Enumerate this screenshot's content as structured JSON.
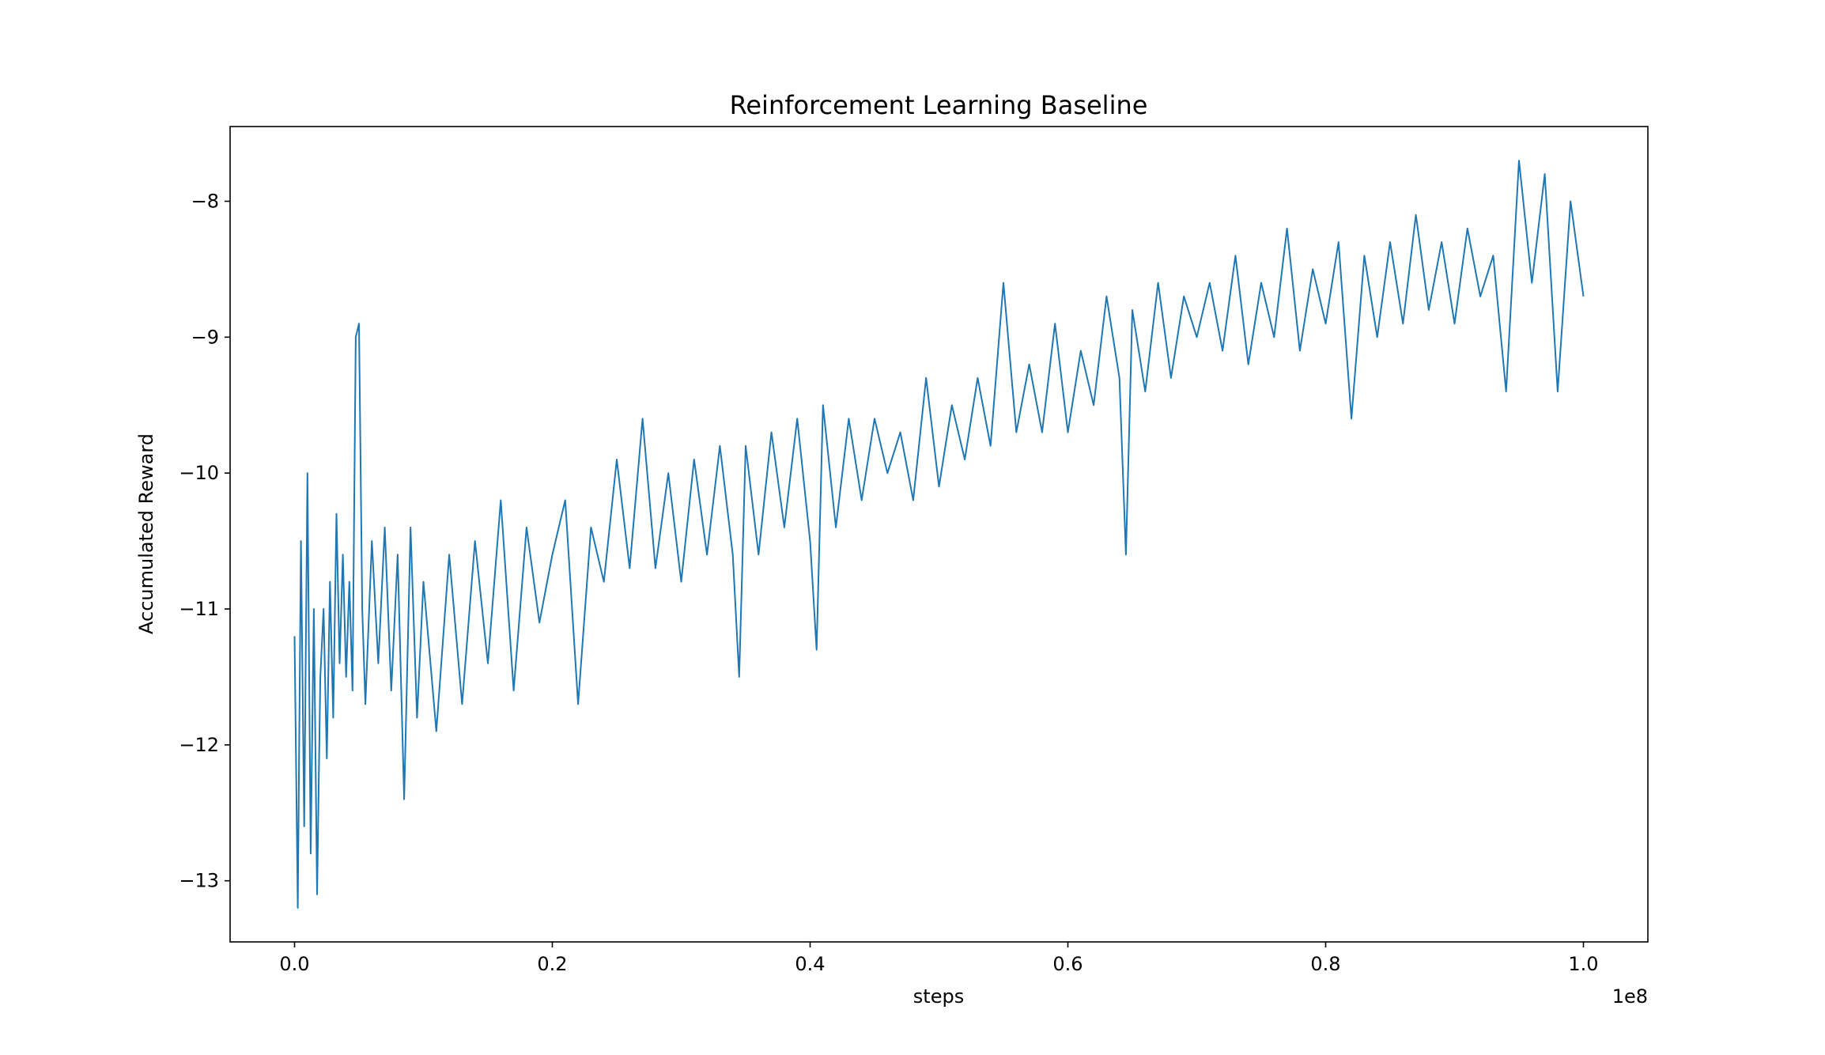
{
  "chart_data": {
    "type": "line",
    "title": "Reinforcement Learning Baseline",
    "xlabel": "steps",
    "ylabel": "Accumulated Reward",
    "x_offset_label": "1e8",
    "xlim": [
      -0.05,
      1.05
    ],
    "ylim": [
      -13.45,
      -7.45
    ],
    "xticks": [
      0.0,
      0.2,
      0.4,
      0.6,
      0.8,
      1.0
    ],
    "xtick_labels": [
      "0.0",
      "0.2",
      "0.4",
      "0.6",
      "0.8",
      "1.0"
    ],
    "yticks": [
      -13,
      -12,
      -11,
      -10,
      -9,
      -8
    ],
    "ytick_labels": [
      "−13",
      "−12",
      "−11",
      "−10",
      "−9",
      "−8"
    ],
    "grid": false,
    "legend": "none",
    "series": [
      {
        "name": "Accumulated Reward",
        "color": "#1f77b4",
        "x": [
          0.0,
          0.0025,
          0.005,
          0.0075,
          0.01,
          0.0125,
          0.015,
          0.0175,
          0.02,
          0.0225,
          0.025,
          0.0275,
          0.03,
          0.0325,
          0.035,
          0.0375,
          0.04,
          0.0425,
          0.045,
          0.0475,
          0.05,
          0.0525,
          0.055,
          0.06,
          0.065,
          0.07,
          0.075,
          0.08,
          0.085,
          0.09,
          0.095,
          0.1,
          0.11,
          0.12,
          0.13,
          0.14,
          0.15,
          0.16,
          0.17,
          0.18,
          0.19,
          0.2,
          0.21,
          0.22,
          0.23,
          0.24,
          0.25,
          0.26,
          0.27,
          0.28,
          0.29,
          0.3,
          0.31,
          0.32,
          0.33,
          0.34,
          0.345,
          0.35,
          0.36,
          0.37,
          0.38,
          0.39,
          0.4,
          0.405,
          0.41,
          0.42,
          0.43,
          0.44,
          0.45,
          0.46,
          0.47,
          0.48,
          0.49,
          0.5,
          0.51,
          0.52,
          0.53,
          0.54,
          0.55,
          0.56,
          0.57,
          0.58,
          0.59,
          0.6,
          0.61,
          0.62,
          0.63,
          0.64,
          0.645,
          0.65,
          0.66,
          0.67,
          0.68,
          0.69,
          0.7,
          0.71,
          0.72,
          0.73,
          0.74,
          0.75,
          0.76,
          0.77,
          0.78,
          0.79,
          0.8,
          0.81,
          0.82,
          0.83,
          0.84,
          0.85,
          0.86,
          0.87,
          0.88,
          0.89,
          0.9,
          0.91,
          0.92,
          0.93,
          0.94,
          0.95,
          0.96,
          0.97,
          0.98,
          0.99,
          1.0
        ],
        "y": [
          -11.2,
          -13.2,
          -10.5,
          -12.6,
          -10.0,
          -12.8,
          -11.0,
          -13.1,
          -11.5,
          -11.0,
          -12.1,
          -10.8,
          -11.8,
          -10.3,
          -11.4,
          -10.6,
          -11.5,
          -10.8,
          -11.6,
          -9.0,
          -8.9,
          -11.0,
          -11.7,
          -10.5,
          -11.4,
          -10.4,
          -11.6,
          -10.6,
          -12.4,
          -10.4,
          -11.8,
          -10.8,
          -11.9,
          -10.6,
          -11.7,
          -10.5,
          -11.4,
          -10.2,
          -11.6,
          -10.4,
          -11.1,
          -10.6,
          -10.2,
          -11.7,
          -10.4,
          -10.8,
          -9.9,
          -10.7,
          -9.6,
          -10.7,
          -10.0,
          -10.8,
          -9.9,
          -10.6,
          -9.8,
          -10.6,
          -11.5,
          -9.8,
          -10.6,
          -9.7,
          -10.4,
          -9.6,
          -10.5,
          -11.3,
          -9.5,
          -10.4,
          -9.6,
          -10.2,
          -9.6,
          -10.0,
          -9.7,
          -10.2,
          -9.3,
          -10.1,
          -9.5,
          -9.9,
          -9.3,
          -9.8,
          -8.6,
          -9.7,
          -9.2,
          -9.7,
          -8.9,
          -9.7,
          -9.1,
          -9.5,
          -8.7,
          -9.3,
          -10.6,
          -8.8,
          -9.4,
          -8.6,
          -9.3,
          -8.7,
          -9.0,
          -8.6,
          -9.1,
          -8.4,
          -9.2,
          -8.6,
          -9.0,
          -8.2,
          -9.1,
          -8.5,
          -8.9,
          -8.3,
          -9.6,
          -8.4,
          -9.0,
          -8.3,
          -8.9,
          -8.1,
          -8.8,
          -8.3,
          -8.9,
          -8.2,
          -8.7,
          -8.4,
          -9.4,
          -7.7,
          -8.6,
          -7.8,
          -9.4,
          -8.0,
          -8.7
        ]
      }
    ]
  }
}
